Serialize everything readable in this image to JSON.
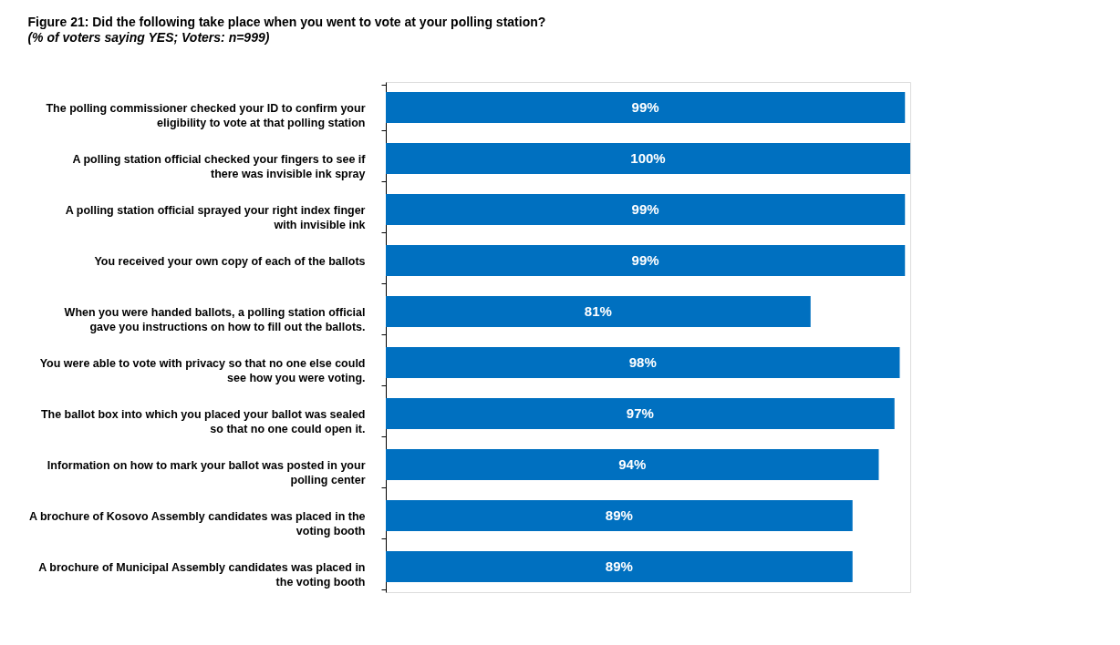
{
  "chart_data": {
    "type": "bar",
    "orientation": "horizontal",
    "title": "Figure 21: Did the following take place when you went to vote at your polling station?",
    "subtitle": "(% of voters saying YES; Voters: n=999)",
    "categories": [
      "The polling commissioner checked your ID to confirm your eligibility to vote at that polling station",
      "A polling station official checked your fingers to see if there was invisible ink spray",
      "A polling station official sprayed your right index finger with invisible ink",
      "You received your own copy of each of the ballots",
      "When you were handed ballots, a polling station official gave you instructions on how to fill out the ballots.",
      "You were able to vote with privacy so that no one else could see how you were voting.",
      "The ballot box into which you  placed your ballot was sealed so that no one could open it.",
      "Information on how to mark your ballot was posted in your polling center",
      "A brochure of Kosovo Assembly candidates was placed in the voting booth",
      "A brochure of Municipal Assembly candidates was placed in the voting booth"
    ],
    "values": [
      99,
      100,
      99,
      99,
      81,
      98,
      97,
      94,
      89,
      89
    ],
    "value_labels": [
      "99%",
      "100%",
      "99%",
      "99%",
      "81%",
      "98%",
      "97%",
      "94%",
      "89%",
      "89%"
    ],
    "color": "#0070c0",
    "xlim": [
      0,
      100
    ],
    "grid": false
  }
}
